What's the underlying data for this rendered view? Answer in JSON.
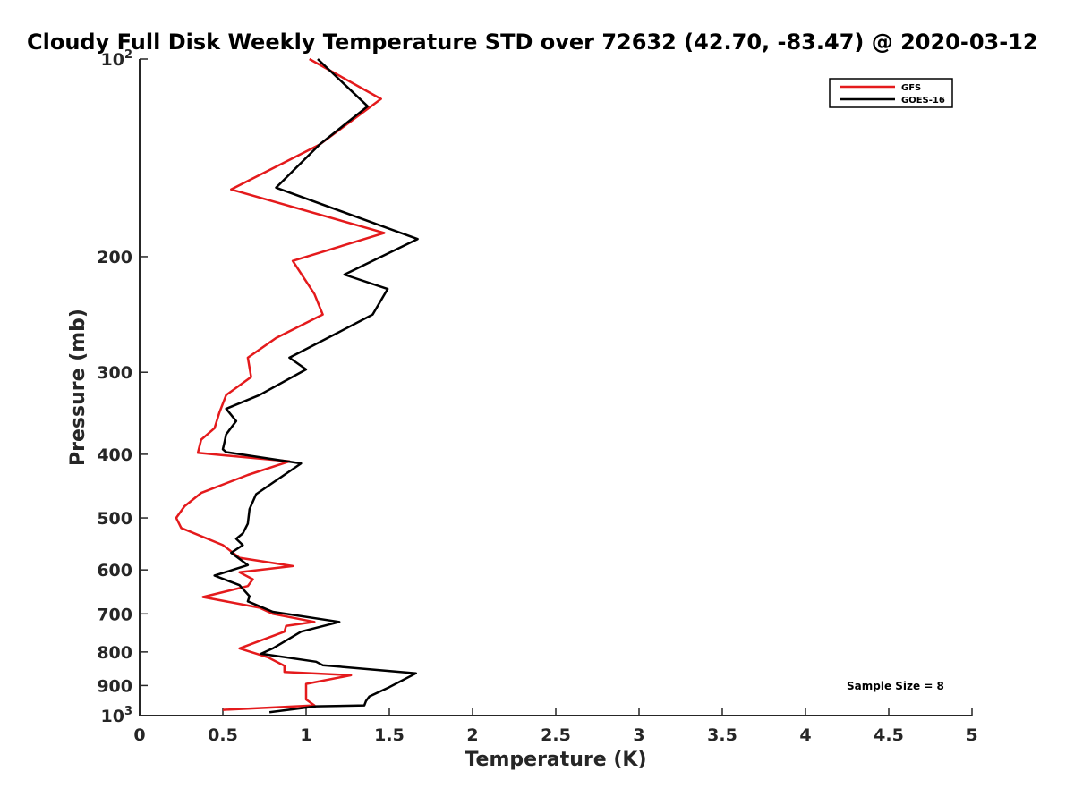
{
  "chart_data": {
    "type": "line",
    "title": "Cloudy Full Disk Weekly Temperature STD over 72632 (42.70, -83.47) @ 2020-03-12",
    "xlabel": "Temperature (K)",
    "ylabel": "Pressure (mb)",
    "xlim": [
      0,
      5
    ],
    "ylim": [
      100,
      1000
    ],
    "yscale": "log",
    "yreversed": true,
    "xticks": [
      0,
      0.5,
      1,
      1.5,
      2,
      2.5,
      3,
      3.5,
      4,
      4.5,
      5
    ],
    "xtick_labels": [
      "0",
      "0.5",
      "1",
      "1.5",
      "2",
      "2.5",
      "3",
      "3.5",
      "4",
      "4.5",
      "5"
    ],
    "yticks": [
      {
        "value": 100,
        "base": "10",
        "exp": "2"
      },
      {
        "value": 200,
        "label": "200"
      },
      {
        "value": 300,
        "label": "300"
      },
      {
        "value": 400,
        "label": "400"
      },
      {
        "value": 500,
        "label": "500"
      },
      {
        "value": 600,
        "label": "600"
      },
      {
        "value": 700,
        "label": "700"
      },
      {
        "value": 800,
        "label": "800"
      },
      {
        "value": 900,
        "label": "900"
      },
      {
        "value": 1000,
        "base": "10",
        "exp": "3"
      }
    ],
    "grid": false,
    "legend_position": "top-right",
    "annotation": "Sample Size = 8",
    "series": [
      {
        "name": "GFS",
        "color": "#e41a1c",
        "points": [
          [
            1.02,
            100
          ],
          [
            1.45,
            115
          ],
          [
            1.08,
            135
          ],
          [
            0.55,
            158
          ],
          [
            1.47,
            184
          ],
          [
            0.92,
            203
          ],
          [
            1.05,
            228
          ],
          [
            1.1,
            245
          ],
          [
            0.82,
            266
          ],
          [
            0.65,
            285
          ],
          [
            0.67,
            305
          ],
          [
            0.52,
            325
          ],
          [
            0.48,
            345
          ],
          [
            0.45,
            365
          ],
          [
            0.37,
            380
          ],
          [
            0.35,
            398
          ],
          [
            0.9,
            410
          ],
          [
            0.65,
            430
          ],
          [
            0.37,
            458
          ],
          [
            0.27,
            480
          ],
          [
            0.22,
            500
          ],
          [
            0.25,
            518
          ],
          [
            0.5,
            550
          ],
          [
            0.6,
            575
          ],
          [
            0.92,
            592
          ],
          [
            0.6,
            605
          ],
          [
            0.68,
            620
          ],
          [
            0.65,
            635
          ],
          [
            0.38,
            660
          ],
          [
            0.72,
            685
          ],
          [
            0.8,
            700
          ],
          [
            1.05,
            720
          ],
          [
            0.88,
            730
          ],
          [
            0.87,
            745
          ],
          [
            0.6,
            790
          ],
          [
            0.77,
            815
          ],
          [
            0.87,
            840
          ],
          [
            0.87,
            858
          ],
          [
            1.27,
            868
          ],
          [
            1.0,
            895
          ],
          [
            1.0,
            945
          ],
          [
            1.05,
            965
          ],
          [
            0.5,
            980
          ]
        ]
      },
      {
        "name": "GOES-16",
        "color": "#000000",
        "points": [
          [
            1.07,
            100
          ],
          [
            1.37,
            118
          ],
          [
            1.08,
            135
          ],
          [
            0.82,
            157
          ],
          [
            1.67,
            188
          ],
          [
            1.23,
            213
          ],
          [
            1.49,
            224
          ],
          [
            1.4,
            245
          ],
          [
            1.18,
            262
          ],
          [
            0.9,
            285
          ],
          [
            1.0,
            297
          ],
          [
            0.72,
            325
          ],
          [
            0.52,
            341
          ],
          [
            0.58,
            356
          ],
          [
            0.52,
            373
          ],
          [
            0.51,
            383
          ],
          [
            0.5,
            393
          ],
          [
            0.52,
            397
          ],
          [
            0.97,
            413
          ],
          [
            0.7,
            460
          ],
          [
            0.66,
            485
          ],
          [
            0.65,
            510
          ],
          [
            0.62,
            528
          ],
          [
            0.58,
            538
          ],
          [
            0.62,
            550
          ],
          [
            0.55,
            565
          ],
          [
            0.65,
            590
          ],
          [
            0.45,
            612
          ],
          [
            0.6,
            633
          ],
          [
            0.66,
            658
          ],
          [
            0.65,
            670
          ],
          [
            0.8,
            695
          ],
          [
            1.2,
            720
          ],
          [
            0.97,
            745
          ],
          [
            0.8,
            790
          ],
          [
            0.73,
            805
          ],
          [
            1.06,
            828
          ],
          [
            1.1,
            838
          ],
          [
            1.66,
            862
          ],
          [
            1.5,
            905
          ],
          [
            1.38,
            935
          ],
          [
            1.36,
            950
          ],
          [
            1.35,
            965
          ],
          [
            1.06,
            968
          ],
          [
            0.78,
            988
          ]
        ]
      }
    ]
  }
}
